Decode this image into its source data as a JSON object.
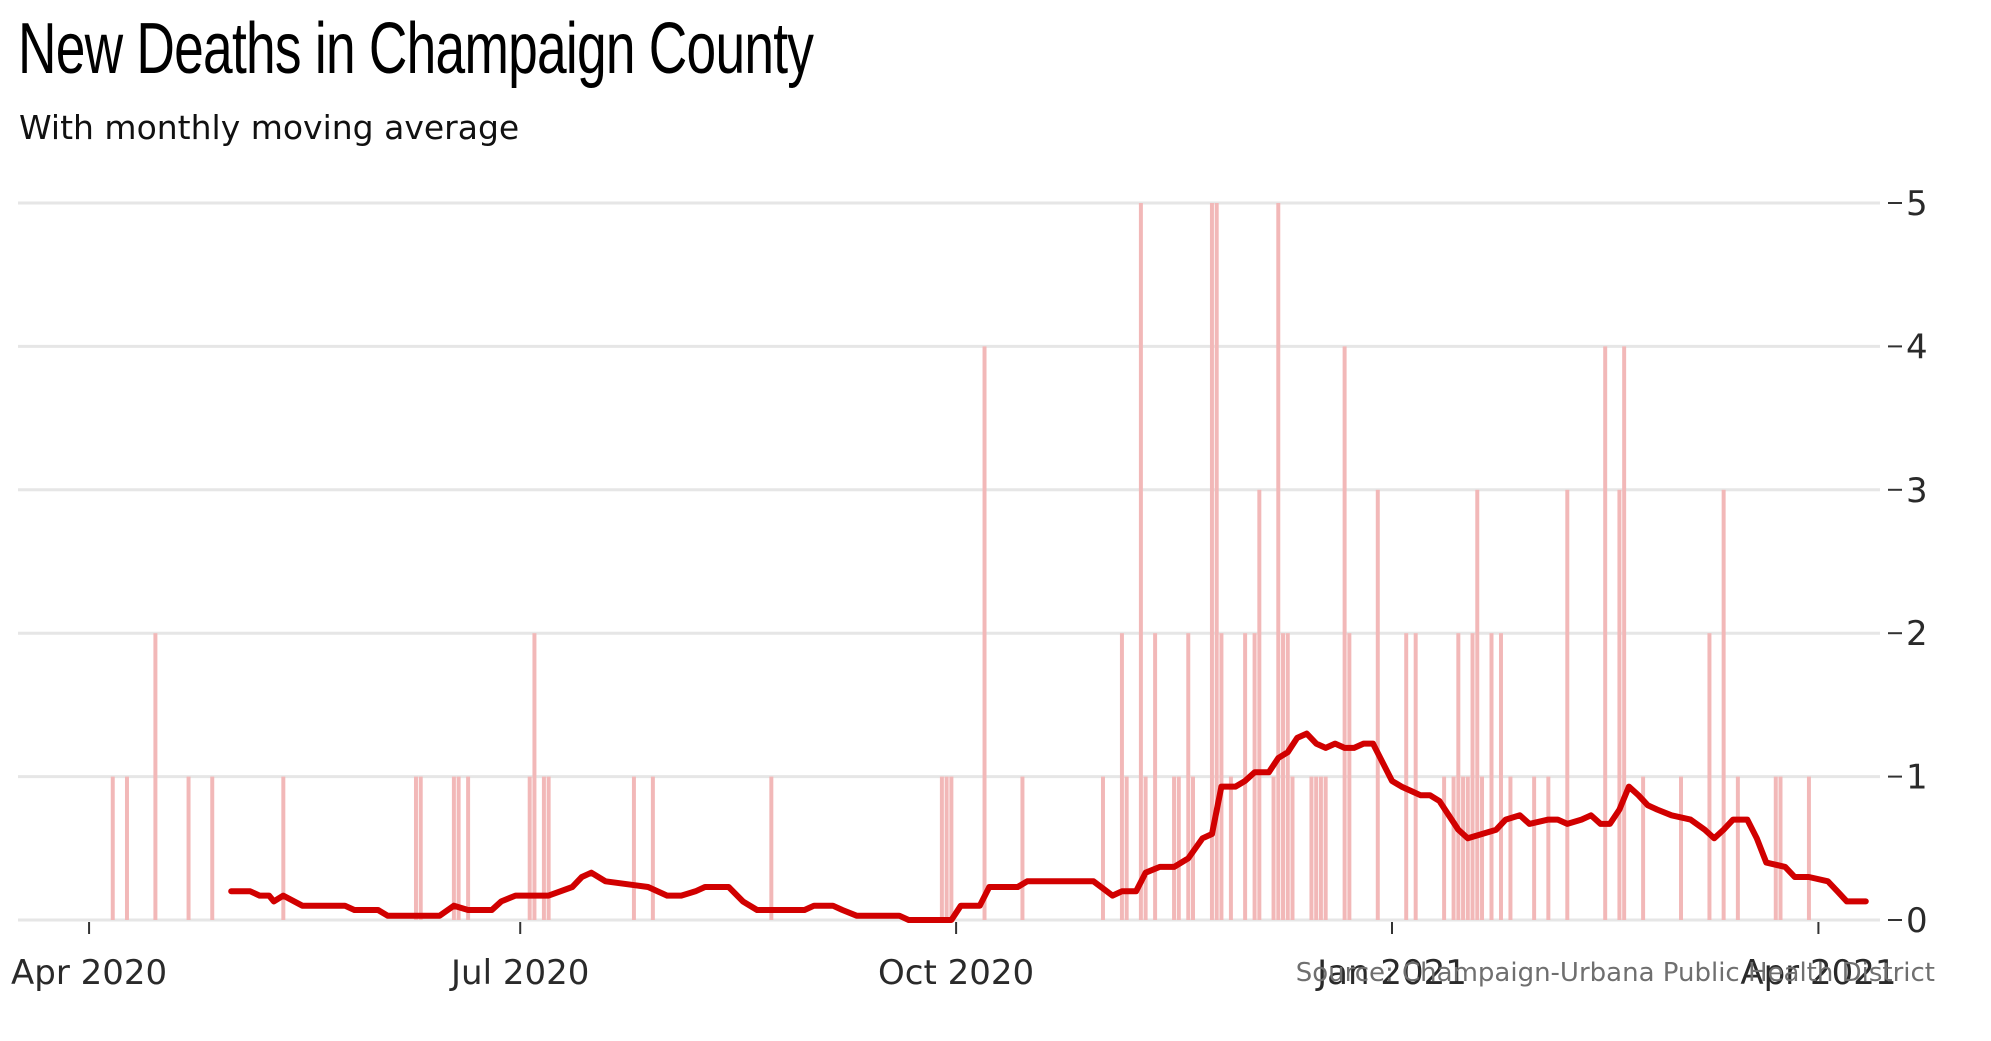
{
  "title": "New Deaths in Champaign County",
  "subtitle": "With monthly moving average",
  "source": "Source: Champaign-Urbana Public Health District",
  "colors": {
    "bars": "#f2b8b8",
    "line": "#d10000",
    "grid": "#e6e6e6",
    "background": "#ffffff"
  },
  "chart_data": {
    "type": "bar",
    "overlay": "line",
    "x_type": "date",
    "xlim": [
      "2020-03-17",
      "2021-04-14"
    ],
    "ylim": [
      0,
      5
    ],
    "y_ticks": [
      "0",
      "1",
      "2",
      "3",
      "4",
      "5"
    ],
    "y_axis_side": "right",
    "x_ticks": [
      {
        "date": "2020-04-01",
        "label": "Apr 2020"
      },
      {
        "date": "2020-07-01",
        "label": "Jul 2020"
      },
      {
        "date": "2020-10-01",
        "label": "Oct 2020"
      },
      {
        "date": "2021-01-01",
        "label": "Jan 2021"
      },
      {
        "date": "2021-04-01",
        "label": "Apr 2021"
      }
    ],
    "grid": true,
    "series": [
      {
        "type": "bar",
        "points": [
          [
            "2020-04-06",
            1
          ],
          [
            "2020-04-09",
            1
          ],
          [
            "2020-04-15",
            2
          ],
          [
            "2020-04-22",
            1
          ],
          [
            "2020-04-27",
            1
          ],
          [
            "2020-05-12",
            1
          ],
          [
            "2020-06-09",
            1
          ],
          [
            "2020-06-10",
            1
          ],
          [
            "2020-06-17",
            1
          ],
          [
            "2020-06-18",
            1
          ],
          [
            "2020-06-20",
            1
          ],
          [
            "2020-07-03",
            1
          ],
          [
            "2020-07-04",
            2
          ],
          [
            "2020-07-06",
            1
          ],
          [
            "2020-07-07",
            1
          ],
          [
            "2020-07-25",
            1
          ],
          [
            "2020-07-29",
            1
          ],
          [
            "2020-08-23",
            1
          ],
          [
            "2020-09-28",
            1
          ],
          [
            "2020-09-29",
            1
          ],
          [
            "2020-09-30",
            1
          ],
          [
            "2020-10-07",
            4
          ],
          [
            "2020-10-15",
            1
          ],
          [
            "2020-11-01",
            1
          ],
          [
            "2020-11-05",
            2
          ],
          [
            "2020-11-06",
            1
          ],
          [
            "2020-11-09",
            5
          ],
          [
            "2020-11-10",
            1
          ],
          [
            "2020-11-12",
            2
          ],
          [
            "2020-11-16",
            1
          ],
          [
            "2020-11-17",
            1
          ],
          [
            "2020-11-19",
            2
          ],
          [
            "2020-11-20",
            1
          ],
          [
            "2020-11-24",
            5
          ],
          [
            "2020-11-25",
            5
          ],
          [
            "2020-11-26",
            2
          ],
          [
            "2020-11-28",
            1
          ],
          [
            "2020-12-01",
            2
          ],
          [
            "2020-12-03",
            2
          ],
          [
            "2020-12-04",
            3
          ],
          [
            "2020-12-07",
            1
          ],
          [
            "2020-12-08",
            5
          ],
          [
            "2020-12-09",
            2
          ],
          [
            "2020-12-10",
            2
          ],
          [
            "2020-12-11",
            1
          ],
          [
            "2020-12-15",
            1
          ],
          [
            "2020-12-16",
            1
          ],
          [
            "2020-12-17",
            1
          ],
          [
            "2020-12-18",
            1
          ],
          [
            "2020-12-22",
            4
          ],
          [
            "2020-12-23",
            2
          ],
          [
            "2020-12-29",
            3
          ],
          [
            "2021-01-04",
            2
          ],
          [
            "2021-01-06",
            2
          ],
          [
            "2021-01-12",
            1
          ],
          [
            "2021-01-14",
            1
          ],
          [
            "2021-01-15",
            2
          ],
          [
            "2021-01-16",
            1
          ],
          [
            "2021-01-17",
            1
          ],
          [
            "2021-01-18",
            2
          ],
          [
            "2021-01-19",
            3
          ],
          [
            "2021-01-20",
            1
          ],
          [
            "2021-01-22",
            2
          ],
          [
            "2021-01-24",
            2
          ],
          [
            "2021-01-26",
            1
          ],
          [
            "2021-01-31",
            1
          ],
          [
            "2021-02-03",
            1
          ],
          [
            "2021-02-07",
            3
          ],
          [
            "2021-02-15",
            4
          ],
          [
            "2021-02-18",
            3
          ],
          [
            "2021-02-19",
            4
          ],
          [
            "2021-02-23",
            1
          ],
          [
            "2021-03-03",
            1
          ],
          [
            "2021-03-09",
            2
          ],
          [
            "2021-03-12",
            3
          ],
          [
            "2021-03-15",
            1
          ],
          [
            "2021-03-23",
            1
          ],
          [
            "2021-03-24",
            1
          ],
          [
            "2021-03-30",
            1
          ]
        ]
      },
      {
        "type": "line",
        "points": [
          [
            "2020-05-01",
            0.2
          ],
          [
            "2020-05-05",
            0.2
          ],
          [
            "2020-05-07",
            0.17
          ],
          [
            "2020-05-09",
            0.17
          ],
          [
            "2020-05-10",
            0.13
          ],
          [
            "2020-05-12",
            0.17
          ],
          [
            "2020-05-16",
            0.1
          ],
          [
            "2020-05-25",
            0.1
          ],
          [
            "2020-05-27",
            0.07
          ],
          [
            "2020-06-01",
            0.07
          ],
          [
            "2020-06-03",
            0.03
          ],
          [
            "2020-06-14",
            0.03
          ],
          [
            "2020-06-17",
            0.1
          ],
          [
            "2020-06-20",
            0.07
          ],
          [
            "2020-06-25",
            0.07
          ],
          [
            "2020-06-27",
            0.13
          ],
          [
            "2020-06-30",
            0.17
          ],
          [
            "2020-07-07",
            0.17
          ],
          [
            "2020-07-12",
            0.23
          ],
          [
            "2020-07-14",
            0.3
          ],
          [
            "2020-07-16",
            0.33
          ],
          [
            "2020-07-19",
            0.27
          ],
          [
            "2020-07-28",
            0.23
          ],
          [
            "2020-08-01",
            0.17
          ],
          [
            "2020-08-04",
            0.17
          ],
          [
            "2020-08-07",
            0.2
          ],
          [
            "2020-08-09",
            0.23
          ],
          [
            "2020-08-14",
            0.23
          ],
          [
            "2020-08-17",
            0.13
          ],
          [
            "2020-08-20",
            0.07
          ],
          [
            "2020-08-30",
            0.07
          ],
          [
            "2020-09-01",
            0.1
          ],
          [
            "2020-09-05",
            0.1
          ],
          [
            "2020-09-07",
            0.07
          ],
          [
            "2020-09-10",
            0.03
          ],
          [
            "2020-09-19",
            0.03
          ],
          [
            "2020-09-21",
            0.0
          ],
          [
            "2020-09-30",
            0.0
          ],
          [
            "2020-10-02",
            0.1
          ],
          [
            "2020-10-06",
            0.1
          ],
          [
            "2020-10-08",
            0.23
          ],
          [
            "2020-10-14",
            0.23
          ],
          [
            "2020-10-16",
            0.27
          ],
          [
            "2020-10-30",
            0.27
          ],
          [
            "2020-11-03",
            0.17
          ],
          [
            "2020-11-05",
            0.2
          ],
          [
            "2020-11-08",
            0.2
          ],
          [
            "2020-11-10",
            0.33
          ],
          [
            "2020-11-13",
            0.37
          ],
          [
            "2020-11-16",
            0.37
          ],
          [
            "2020-11-19",
            0.43
          ],
          [
            "2020-11-22",
            0.57
          ],
          [
            "2020-11-24",
            0.6
          ],
          [
            "2020-11-26",
            0.93
          ],
          [
            "2020-11-29",
            0.93
          ],
          [
            "2020-12-01",
            0.97
          ],
          [
            "2020-12-03",
            1.03
          ],
          [
            "2020-12-06",
            1.03
          ],
          [
            "2020-12-08",
            1.13
          ],
          [
            "2020-12-10",
            1.17
          ],
          [
            "2020-12-12",
            1.27
          ],
          [
            "2020-12-14",
            1.3
          ],
          [
            "2020-12-16",
            1.23
          ],
          [
            "2020-12-18",
            1.2
          ],
          [
            "2020-12-20",
            1.23
          ],
          [
            "2020-12-22",
            1.2
          ],
          [
            "2020-12-24",
            1.2
          ],
          [
            "2020-12-26",
            1.23
          ],
          [
            "2020-12-28",
            1.23
          ],
          [
            "2021-01-01",
            0.97
          ],
          [
            "2021-01-03",
            0.93
          ],
          [
            "2021-01-05",
            0.9
          ],
          [
            "2021-01-07",
            0.87
          ],
          [
            "2021-01-09",
            0.87
          ],
          [
            "2021-01-11",
            0.83
          ],
          [
            "2021-01-13",
            0.73
          ],
          [
            "2021-01-15",
            0.63
          ],
          [
            "2021-01-17",
            0.57
          ],
          [
            "2021-01-20",
            0.6
          ],
          [
            "2021-01-23",
            0.63
          ],
          [
            "2021-01-25",
            0.7
          ],
          [
            "2021-01-28",
            0.73
          ],
          [
            "2021-01-30",
            0.67
          ],
          [
            "2021-02-03",
            0.7
          ],
          [
            "2021-02-05",
            0.7
          ],
          [
            "2021-02-07",
            0.67
          ],
          [
            "2021-02-10",
            0.7
          ],
          [
            "2021-02-12",
            0.73
          ],
          [
            "2021-02-14",
            0.67
          ],
          [
            "2021-02-16",
            0.67
          ],
          [
            "2021-02-18",
            0.77
          ],
          [
            "2021-02-20",
            0.93
          ],
          [
            "2021-02-22",
            0.87
          ],
          [
            "2021-02-24",
            0.8
          ],
          [
            "2021-02-26",
            0.77
          ],
          [
            "2021-03-01",
            0.73
          ],
          [
            "2021-03-05",
            0.7
          ],
          [
            "2021-03-08",
            0.63
          ],
          [
            "2021-03-10",
            0.57
          ],
          [
            "2021-03-12",
            0.63
          ],
          [
            "2021-03-14",
            0.7
          ],
          [
            "2021-03-17",
            0.7
          ],
          [
            "2021-03-19",
            0.57
          ],
          [
            "2021-03-21",
            0.4
          ],
          [
            "2021-03-25",
            0.37
          ],
          [
            "2021-03-27",
            0.3
          ],
          [
            "2021-03-30",
            0.3
          ],
          [
            "2021-04-03",
            0.27
          ],
          [
            "2021-04-05",
            0.2
          ],
          [
            "2021-04-07",
            0.13
          ],
          [
            "2021-04-11",
            0.13
          ]
        ]
      }
    ]
  }
}
